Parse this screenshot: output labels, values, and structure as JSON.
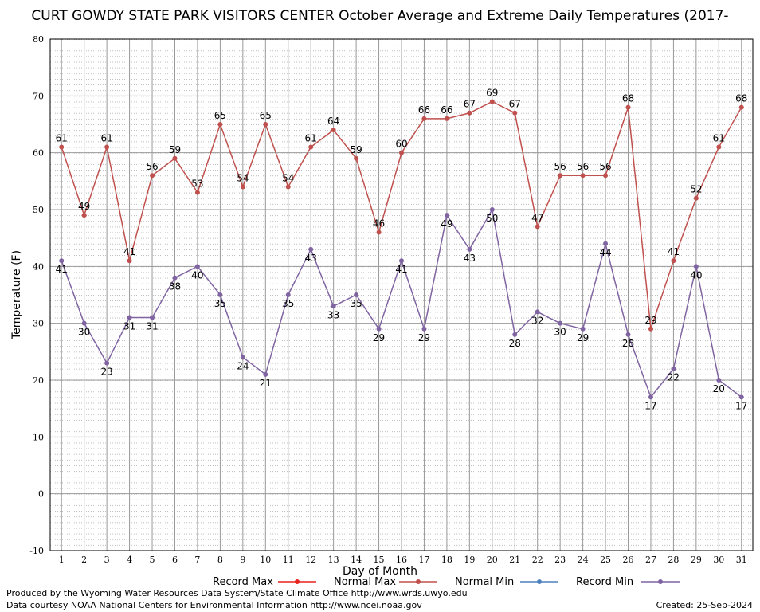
{
  "chart_data": {
    "type": "line",
    "title": "CURT GOWDY STATE PARK VISITORS CENTER October Average and Extreme Daily Temperatures (2017-",
    "x_label": "Day of Month",
    "y_label": "Temperature (F)",
    "x": [
      1,
      2,
      3,
      4,
      5,
      6,
      7,
      8,
      9,
      10,
      11,
      12,
      13,
      14,
      15,
      16,
      17,
      18,
      19,
      20,
      21,
      22,
      23,
      24,
      25,
      26,
      27,
      28,
      29,
      30,
      31
    ],
    "xlim": [
      0.5,
      31.5
    ],
    "xticks": [
      1,
      2,
      3,
      4,
      5,
      6,
      7,
      8,
      9,
      10,
      11,
      12,
      13,
      14,
      15,
      16,
      17,
      18,
      19,
      20,
      21,
      22,
      23,
      24,
      25,
      26,
      27,
      28,
      29,
      30,
      31
    ],
    "ylim": [
      -10,
      80
    ],
    "yticks": [
      -10,
      0,
      10,
      20,
      30,
      40,
      50,
      60,
      70,
      80
    ],
    "grid": true,
    "series": [
      {
        "name": "Record Max",
        "color": "#e8221f",
        "values": [
          null,
          null,
          null,
          null,
          null,
          null,
          null,
          null,
          null,
          null,
          null,
          null,
          null,
          null,
          null,
          null,
          null,
          null,
          null,
          null,
          null,
          null,
          null,
          null,
          null,
          null,
          null,
          null,
          null,
          null,
          null
        ]
      },
      {
        "name": "Normal Max",
        "color": "#c0504d",
        "label_side": "above",
        "values": [
          61,
          49,
          61,
          41,
          56,
          59,
          53,
          65,
          54,
          65,
          54,
          61,
          64,
          59,
          46,
          60,
          66,
          66,
          67,
          69,
          67,
          47,
          56,
          56,
          56,
          68,
          29,
          41,
          52,
          61,
          68
        ]
      },
      {
        "name": "Normal Min",
        "color": "#4f81bd",
        "values": [
          null,
          null,
          null,
          null,
          null,
          null,
          null,
          null,
          null,
          null,
          null,
          null,
          null,
          null,
          null,
          null,
          null,
          null,
          null,
          null,
          null,
          null,
          null,
          null,
          null,
          null,
          null,
          null,
          null,
          null,
          null
        ]
      },
      {
        "name": "Record Min",
        "color": "#8064a2",
        "label_side": "below",
        "values": [
          41,
          30,
          23,
          31,
          31,
          38,
          40,
          35,
          24,
          21,
          35,
          43,
          33,
          35,
          29,
          41,
          29,
          49,
          43,
          50,
          28,
          32,
          30,
          29,
          44,
          28,
          17,
          22,
          40,
          20,
          17
        ]
      }
    ],
    "footer_left": [
      "Produced by the Wyoming Water Resources Data System/State Climate Office http://www.wrds.uwyo.edu",
      "Data courtesy NOAA National Centers for Environmental Information http://www.ncei.noaa.gov"
    ],
    "footer_right": "Created:  25-Sep-2024"
  }
}
